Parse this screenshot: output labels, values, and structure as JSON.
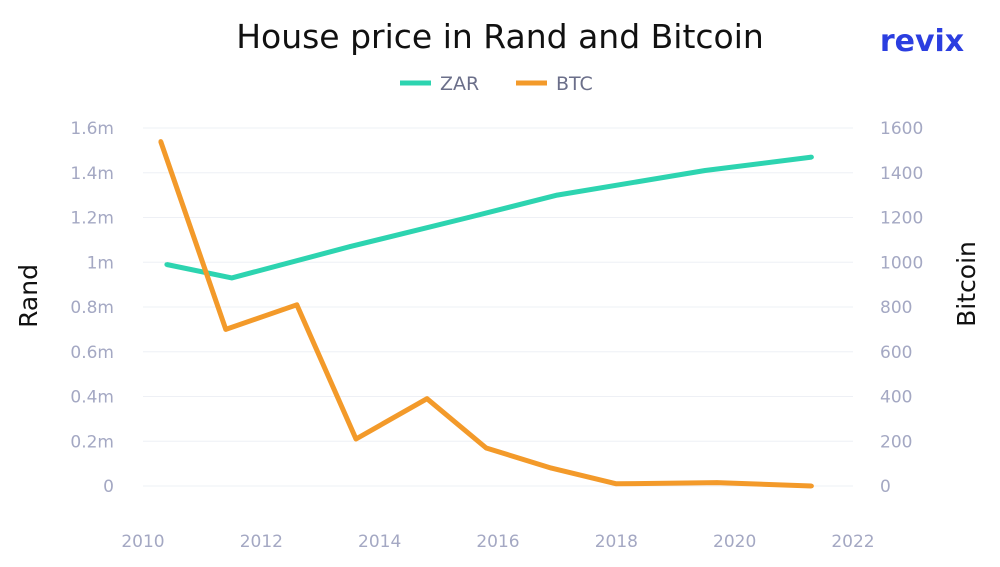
{
  "brand": "revix",
  "chart_data": {
    "type": "line",
    "title": "House price in Rand and Bitcoin",
    "x_ticks": [
      2010,
      2012,
      2014,
      2016,
      2018,
      2020,
      2022
    ],
    "xlim": [
      2010,
      2022
    ],
    "y_left": {
      "label": "Rand",
      "ylim": [
        0,
        1600000
      ],
      "ticks": [
        0,
        200000,
        400000,
        600000,
        800000,
        1000000,
        1200000,
        1400000,
        1600000
      ],
      "tick_labels": [
        "0",
        "0.2m",
        "0.4m",
        "0.6m",
        "0.8m",
        "1m",
        "1.2m",
        "1.4m",
        "1.6m"
      ]
    },
    "y_right": {
      "label": "Bitcoin",
      "ylim": [
        0,
        1600
      ],
      "ticks": [
        0,
        200,
        400,
        600,
        800,
        1000,
        1200,
        1400,
        1600
      ],
      "tick_labels": [
        "0",
        "200",
        "400",
        "600",
        "800",
        "1000",
        "1200",
        "1400",
        "1600"
      ]
    },
    "grid": "horizontal",
    "legend_position": "top-center",
    "series": [
      {
        "name": "ZAR",
        "axis": "left",
        "color": "#2dd4b0",
        "points": [
          [
            2010.4,
            990000
          ],
          [
            2011.5,
            930000
          ],
          [
            2013.5,
            1070000
          ],
          [
            2015.5,
            1200000
          ],
          [
            2017.0,
            1300000
          ],
          [
            2019.5,
            1410000
          ],
          [
            2021.3,
            1470000
          ]
        ]
      },
      {
        "name": "BTC",
        "axis": "right",
        "color": "#f39a2a",
        "points": [
          [
            2010.3,
            1540
          ],
          [
            2011.4,
            700
          ],
          [
            2012.6,
            810
          ],
          [
            2013.6,
            210
          ],
          [
            2014.8,
            390
          ],
          [
            2015.8,
            170
          ],
          [
            2016.9,
            80
          ],
          [
            2018.0,
            10
          ],
          [
            2019.7,
            15
          ],
          [
            2021.3,
            0
          ]
        ]
      }
    ]
  }
}
